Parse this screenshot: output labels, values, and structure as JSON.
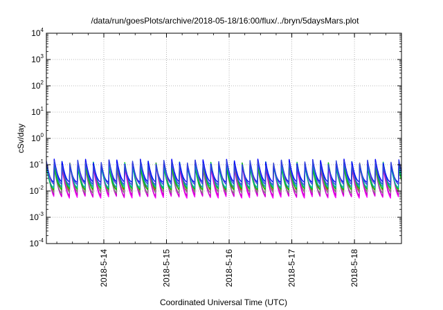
{
  "chart_data": {
    "type": "line",
    "title": "/data/run/goesPlots/archive/2018-05-18/16:00/flux/../bryn/5daysMars.plot",
    "xlabel": "Coordinated Universal Time (UTC)",
    "ylabel": "cSv/day",
    "y_scale": "log",
    "ylim": [
      0.0001,
      10000
    ],
    "xlim": [
      "2018-05-13T02:00",
      "2018-05-18T18:00"
    ],
    "x_ticks": [
      "2018-05-14T00:00",
      "2018-05-15T00:00",
      "2018-05-16T00:00",
      "2018-05-17T00:00",
      "2018-05-18T00:00"
    ],
    "x_tick_labels": [
      "2018-5-14",
      "2018-5-15",
      "2018-5-16",
      "2018-5-17",
      "2018-5-18"
    ],
    "y_tick_labels": [
      {
        "base": "10",
        "exp": "-4"
      },
      {
        "base": "10",
        "exp": "-3"
      },
      {
        "base": "10",
        "exp": "-2"
      },
      {
        "base": "10",
        "exp": "-1"
      },
      {
        "base": "10",
        "exp": "0"
      },
      {
        "base": "10",
        "exp": "1"
      },
      {
        "base": "10",
        "exp": "2"
      },
      {
        "base": "10",
        "exp": "3"
      },
      {
        "base": "10",
        "exp": "4"
      }
    ],
    "grid": true,
    "legend": "none",
    "pulse_period_hours": 3,
    "series": [
      {
        "color": "#ff0000",
        "peak": 0.12,
        "trough": 0.008
      },
      {
        "color": "#ff00ff",
        "peak": 0.1,
        "trough": 0.004
      },
      {
        "color": "#cc00cc",
        "peak": 0.09,
        "trough": 0.005
      },
      {
        "color": "#7f7f7f",
        "peak": 0.095,
        "trough": 0.007
      },
      {
        "color": "#00cc00",
        "peak": 0.1,
        "trough": 0.01
      },
      {
        "color": "#00aaaa",
        "peak": 0.11,
        "trough": 0.012
      },
      {
        "color": "#0000ff",
        "peak": 0.13,
        "trough": 0.02
      },
      {
        "color": "#3344dd",
        "peak": 0.12,
        "trough": 0.016
      }
    ]
  }
}
